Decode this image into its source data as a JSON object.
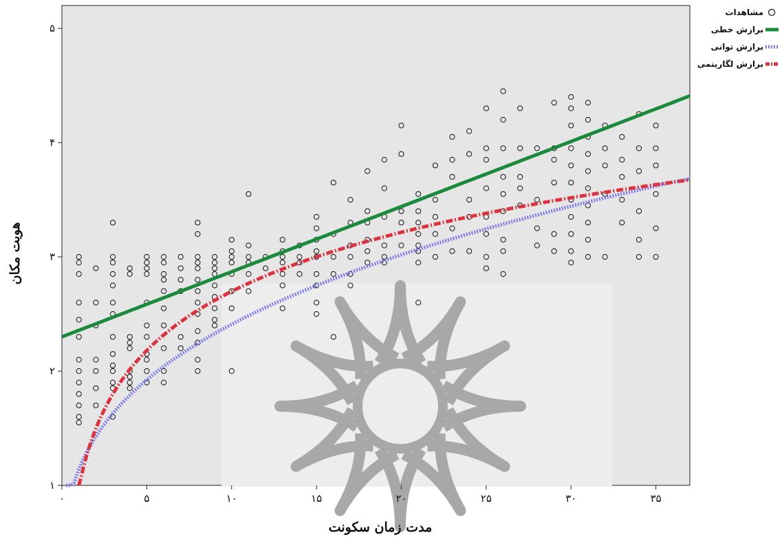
{
  "chart_data": {
    "type": "scatter",
    "title": "",
    "xlabel": "مدت زمان سکونت",
    "ylabel": "هویت مکان",
    "xlim": [
      0,
      37
    ],
    "ylim": [
      1,
      5.2
    ],
    "x_ticks": [
      0,
      5,
      10,
      15,
      20,
      25,
      30,
      35
    ],
    "x_tick_labels": [
      "۰",
      "۵",
      "۱۰",
      "۱۵",
      "۲۰",
      "۲۵",
      "۳۰",
      "۳۵"
    ],
    "y_ticks": [
      1,
      2,
      3,
      4,
      5
    ],
    "y_tick_labels": [
      "۱",
      "۲",
      "۳",
      "۴",
      "۵"
    ],
    "grid": false,
    "legend_position": "top-right",
    "colors": {
      "background": "#e6e6e6",
      "points": "#111111",
      "linear": "#1b8a3c",
      "power": "#7b78e8",
      "logarithmic": "#d9343f"
    },
    "legend": [
      {
        "name": "مشاهدات",
        "symbol": "circle",
        "color": "#111111"
      },
      {
        "name": "برازش خطی",
        "symbol": "solid",
        "color": "#1b8a3c"
      },
      {
        "name": "برازش توانی",
        "symbol": "dotted",
        "color": "#7b78e8"
      },
      {
        "name": "برازش لگاریتمی",
        "symbol": "dashdot",
        "color": "#d9343f"
      }
    ],
    "fits": {
      "linear": {
        "intercept": 2.3,
        "slope": 0.057
      },
      "power": {
        "a": 1.14,
        "b": 0.325
      },
      "logarithmic": {
        "a": 0.98,
        "b": 0.746
      }
    },
    "observations": [
      [
        1,
        3
      ],
      [
        1,
        2.95
      ],
      [
        1,
        2.85
      ],
      [
        1,
        2.6
      ],
      [
        1,
        2.45
      ],
      [
        1,
        2.3
      ],
      [
        1,
        2.1
      ],
      [
        1,
        2.0
      ],
      [
        1,
        1.9
      ],
      [
        1,
        1.8
      ],
      [
        1,
        1.7
      ],
      [
        1,
        1.6
      ],
      [
        1,
        1.55
      ],
      [
        2,
        2.9
      ],
      [
        2,
        2.6
      ],
      [
        2,
        2.4
      ],
      [
        2,
        2.1
      ],
      [
        2,
        2.0
      ],
      [
        2,
        1.85
      ],
      [
        2,
        1.7
      ],
      [
        3,
        3.3
      ],
      [
        3,
        3.0
      ],
      [
        3,
        2.95
      ],
      [
        3,
        2.85
      ],
      [
        3,
        2.75
      ],
      [
        3,
        2.6
      ],
      [
        3,
        2.5
      ],
      [
        3,
        2.3
      ],
      [
        3,
        2.15
      ],
      [
        3,
        2.05
      ],
      [
        3,
        2.0
      ],
      [
        3,
        1.9
      ],
      [
        3,
        1.85
      ],
      [
        3,
        1.6
      ],
      [
        4,
        2.9
      ],
      [
        4,
        2.85
      ],
      [
        4,
        2.3
      ],
      [
        4,
        2.25
      ],
      [
        4,
        2.2
      ],
      [
        4,
        2.0
      ],
      [
        4,
        1.95
      ],
      [
        4,
        1.9
      ],
      [
        4,
        1.85
      ],
      [
        5,
        3.0
      ],
      [
        5,
        2.95
      ],
      [
        5,
        2.9
      ],
      [
        5,
        2.85
      ],
      [
        5,
        2.6
      ],
      [
        5,
        2.4
      ],
      [
        5,
        2.3
      ],
      [
        5,
        2.15
      ],
      [
        5,
        2.1
      ],
      [
        5,
        2.0
      ],
      [
        5,
        1.9
      ],
      [
        6,
        3.0
      ],
      [
        6,
        2.95
      ],
      [
        6,
        2.85
      ],
      [
        6,
        2.8
      ],
      [
        6,
        2.7
      ],
      [
        6,
        2.55
      ],
      [
        6,
        2.4
      ],
      [
        6,
        2.2
      ],
      [
        6,
        2.0
      ],
      [
        6,
        1.9
      ],
      [
        7,
        3.0
      ],
      [
        7,
        2.9
      ],
      [
        7,
        2.8
      ],
      [
        7,
        2.7
      ],
      [
        7,
        2.3
      ],
      [
        7,
        2.2
      ],
      [
        8,
        3.3
      ],
      [
        8,
        3.2
      ],
      [
        8,
        3.0
      ],
      [
        8,
        2.95
      ],
      [
        8,
        2.9
      ],
      [
        8,
        2.8
      ],
      [
        8,
        2.7
      ],
      [
        8,
        2.6
      ],
      [
        8,
        2.5
      ],
      [
        8,
        2.35
      ],
      [
        8,
        2.25
      ],
      [
        8,
        2.1
      ],
      [
        8,
        2.0
      ],
      [
        9,
        3.0
      ],
      [
        9,
        2.95
      ],
      [
        9,
        2.9
      ],
      [
        9,
        2.85
      ],
      [
        9,
        2.75
      ],
      [
        9,
        2.65
      ],
      [
        9,
        2.55
      ],
      [
        9,
        2.45
      ],
      [
        9,
        2.4
      ],
      [
        10,
        3.15
      ],
      [
        10,
        3.05
      ],
      [
        10,
        3.0
      ],
      [
        10,
        2.95
      ],
      [
        10,
        2.85
      ],
      [
        10,
        2.7
      ],
      [
        10,
        2.55
      ],
      [
        10,
        2.0
      ],
      [
        11,
        3.55
      ],
      [
        11,
        3.1
      ],
      [
        11,
        3.0
      ],
      [
        11,
        2.95
      ],
      [
        11,
        2.85
      ],
      [
        11,
        2.7
      ],
      [
        12,
        3.0
      ],
      [
        12,
        2.9
      ],
      [
        13,
        3.15
      ],
      [
        13,
        3.05
      ],
      [
        13,
        3.0
      ],
      [
        13,
        2.95
      ],
      [
        13,
        2.85
      ],
      [
        13,
        2.75
      ],
      [
        13,
        2.55
      ],
      [
        14,
        3.1
      ],
      [
        14,
        3.0
      ],
      [
        14,
        2.95
      ],
      [
        14,
        2.85
      ],
      [
        15,
        3.35
      ],
      [
        15,
        3.25
      ],
      [
        15,
        3.15
      ],
      [
        15,
        3.05
      ],
      [
        15,
        3.0
      ],
      [
        15,
        2.85
      ],
      [
        15,
        2.75
      ],
      [
        15,
        2.6
      ],
      [
        15,
        2.5
      ],
      [
        16,
        3.65
      ],
      [
        16,
        3.2
      ],
      [
        16,
        3.0
      ],
      [
        16,
        2.85
      ],
      [
        16,
        2.3
      ],
      [
        17,
        3.5
      ],
      [
        17,
        3.3
      ],
      [
        17,
        3.1
      ],
      [
        17,
        3.0
      ],
      [
        17,
        2.85
      ],
      [
        17,
        2.75
      ],
      [
        18,
        3.75
      ],
      [
        18,
        3.4
      ],
      [
        18,
        3.3
      ],
      [
        18,
        3.15
      ],
      [
        18,
        3.05
      ],
      [
        18,
        2.95
      ],
      [
        19,
        3.85
      ],
      [
        19,
        3.6
      ],
      [
        19,
        3.35
      ],
      [
        19,
        3.1
      ],
      [
        19,
        3.0
      ],
      [
        19,
        2.95
      ],
      [
        20,
        4.15
      ],
      [
        20,
        3.9
      ],
      [
        20,
        3.4
      ],
      [
        20,
        3.3
      ],
      [
        20,
        3.1
      ],
      [
        21,
        3.55
      ],
      [
        21,
        3.4
      ],
      [
        21,
        3.3
      ],
      [
        21,
        3.2
      ],
      [
        21,
        3.1
      ],
      [
        21,
        3.05
      ],
      [
        21,
        2.95
      ],
      [
        21,
        2.6
      ],
      [
        22,
        3.8
      ],
      [
        22,
        3.5
      ],
      [
        22,
        3.35
      ],
      [
        22,
        3.2
      ],
      [
        22,
        3.0
      ],
      [
        23,
        4.05
      ],
      [
        23,
        3.85
      ],
      [
        23,
        3.7
      ],
      [
        23,
        3.25
      ],
      [
        23,
        3.05
      ],
      [
        24,
        4.1
      ],
      [
        24,
        3.9
      ],
      [
        24,
        3.5
      ],
      [
        24,
        3.35
      ],
      [
        24,
        3.05
      ],
      [
        25,
        4.3
      ],
      [
        25,
        3.95
      ],
      [
        25,
        3.85
      ],
      [
        25,
        3.6
      ],
      [
        25,
        3.35
      ],
      [
        25,
        3.2
      ],
      [
        25,
        3.0
      ],
      [
        25,
        2.9
      ],
      [
        26,
        4.45
      ],
      [
        26,
        4.2
      ],
      [
        26,
        3.95
      ],
      [
        26,
        3.7
      ],
      [
        26,
        3.55
      ],
      [
        26,
        3.4
      ],
      [
        26,
        3.15
      ],
      [
        26,
        3.05
      ],
      [
        26,
        2.85
      ],
      [
        27,
        4.3
      ],
      [
        27,
        3.95
      ],
      [
        27,
        3.7
      ],
      [
        27,
        3.6
      ],
      [
        27,
        3.45
      ],
      [
        28,
        3.95
      ],
      [
        28,
        3.5
      ],
      [
        28,
        3.25
      ],
      [
        28,
        3.1
      ],
      [
        29,
        4.35
      ],
      [
        29,
        3.95
      ],
      [
        29,
        3.85
      ],
      [
        29,
        3.65
      ],
      [
        29,
        3.2
      ],
      [
        29,
        3.05
      ],
      [
        30,
        4.4
      ],
      [
        30,
        4.3
      ],
      [
        30,
        4.15
      ],
      [
        30,
        3.95
      ],
      [
        30,
        3.8
      ],
      [
        30,
        3.65
      ],
      [
        30,
        3.5
      ],
      [
        30,
        3.35
      ],
      [
        30,
        3.2
      ],
      [
        30,
        3.05
      ],
      [
        30,
        2.95
      ],
      [
        31,
        4.35
      ],
      [
        31,
        4.2
      ],
      [
        31,
        4.05
      ],
      [
        31,
        3.9
      ],
      [
        31,
        3.75
      ],
      [
        31,
        3.6
      ],
      [
        31,
        3.45
      ],
      [
        31,
        3.3
      ],
      [
        31,
        3.15
      ],
      [
        31,
        3.0
      ],
      [
        32,
        4.15
      ],
      [
        32,
        3.95
      ],
      [
        32,
        3.8
      ],
      [
        32,
        3.55
      ],
      [
        32,
        3.0
      ],
      [
        33,
        4.05
      ],
      [
        33,
        3.85
      ],
      [
        33,
        3.7
      ],
      [
        33,
        3.5
      ],
      [
        33,
        3.3
      ],
      [
        34,
        4.25
      ],
      [
        34,
        3.95
      ],
      [
        34,
        3.75
      ],
      [
        34,
        3.4
      ],
      [
        34,
        3.15
      ],
      [
        34,
        3.0
      ],
      [
        35,
        4.15
      ],
      [
        35,
        3.95
      ],
      [
        35,
        3.8
      ],
      [
        35,
        3.55
      ],
      [
        35,
        3.25
      ],
      [
        35,
        3.0
      ]
    ]
  }
}
